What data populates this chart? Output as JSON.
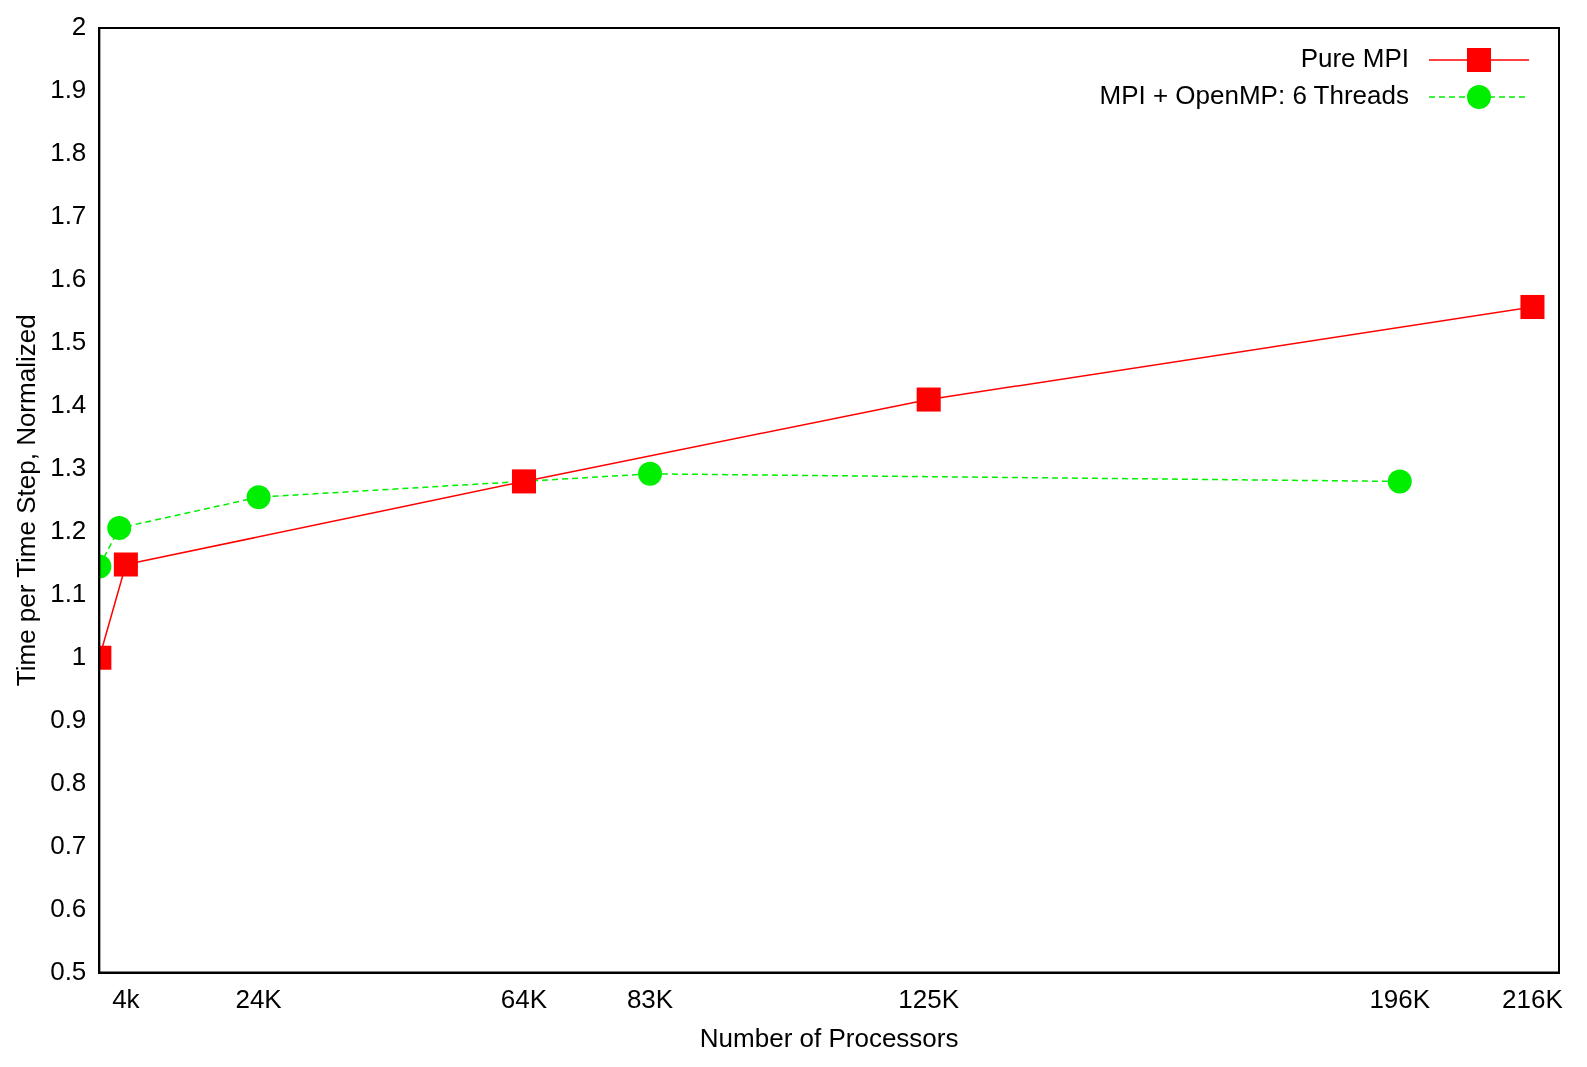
{
  "chart_data": {
    "type": "line",
    "xlabel": "Number of Processors",
    "ylabel": "Time per Time Step, Normalized",
    "xlim": [
      0,
      220
    ],
    "xticks": [
      {
        "value": 4,
        "label": "4k"
      },
      {
        "value": 24,
        "label": "24K"
      },
      {
        "value": 64,
        "label": "64K"
      },
      {
        "value": 83,
        "label": "83K"
      },
      {
        "value": 125,
        "label": "125K"
      },
      {
        "value": 196,
        "label": "196K"
      },
      {
        "value": 216,
        "label": "216K"
      }
    ],
    "ylim": [
      0.5,
      2
    ],
    "yticks": [
      0.5,
      0.6,
      0.7,
      0.8,
      0.9,
      1,
      1.1,
      1.2,
      1.3,
      1.4,
      1.5,
      1.6,
      1.7,
      1.8,
      1.9,
      2
    ],
    "grid": false,
    "legend": "top right",
    "series": [
      {
        "name": "Pure MPI",
        "color": "#ff0000",
        "marker": "square",
        "line_style": "solid",
        "x": [
          0,
          4,
          64,
          125,
          216
        ],
        "values": [
          1.0,
          1.148,
          1.28,
          1.41,
          1.557
        ]
      },
      {
        "name": "MPI + OpenMP: 6 Threads",
        "color": "#00ee00",
        "marker": "circle",
        "line_style": "dashed",
        "x": [
          0,
          3,
          24,
          83,
          196
        ],
        "values": [
          1.145,
          1.206,
          1.255,
          1.292,
          1.28
        ]
      }
    ]
  }
}
